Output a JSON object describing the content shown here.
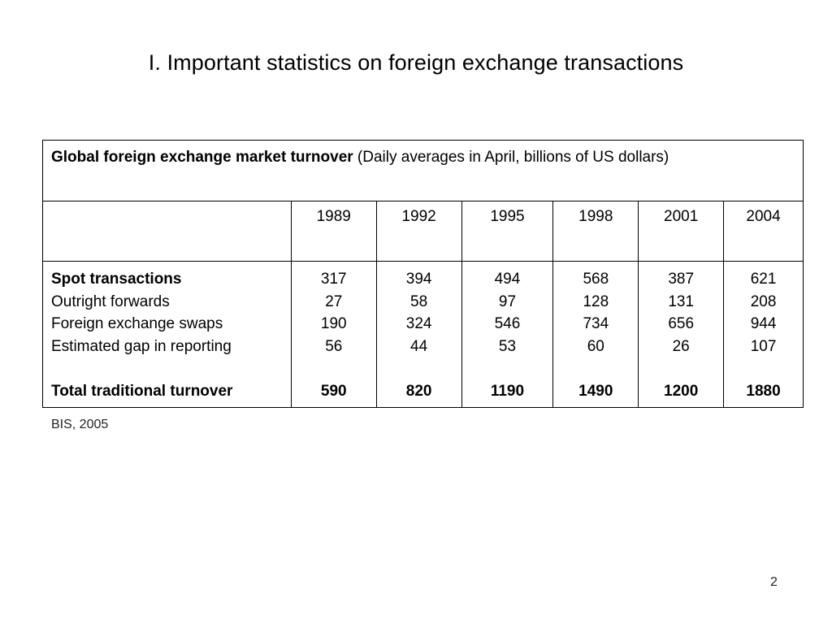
{
  "slide": {
    "title": "I. Important statistics on foreign exchange transactions",
    "source": "BIS, 2005",
    "page_number": "2"
  },
  "table": {
    "caption_bold": "Global foreign exchange market turnover",
    "caption_rest": " (Daily averages in April, billions of US dollars)",
    "years": [
      "1989",
      "1992",
      "1995",
      "1998",
      "2001",
      "2004"
    ],
    "row_labels": {
      "spot": "Spot transactions",
      "forwards": "Outright forwards",
      "swaps": "Foreign exchange swaps",
      "gap": "Estimated gap in reporting",
      "total": "Total traditional turnover"
    },
    "columns": [
      {
        "spot": "317",
        "forwards": "27",
        "swaps": "190",
        "gap": "56",
        "total": "590"
      },
      {
        "spot": "394",
        "forwards": "58",
        "swaps": "324",
        "gap": "44",
        "total": "820"
      },
      {
        "spot": "494",
        "forwards": "97",
        "swaps": "546",
        "gap": "53",
        "total": "1190"
      },
      {
        "spot": "568",
        "forwards": "128",
        "swaps": "734",
        "gap": "60",
        "total": "1490"
      },
      {
        "spot": "387",
        "forwards": "131",
        "swaps": "656",
        "gap": "26",
        "total": "1200"
      },
      {
        "spot": "621",
        "forwards": "208",
        "swaps": "944",
        "gap": "107",
        "total": "1880"
      }
    ]
  }
}
